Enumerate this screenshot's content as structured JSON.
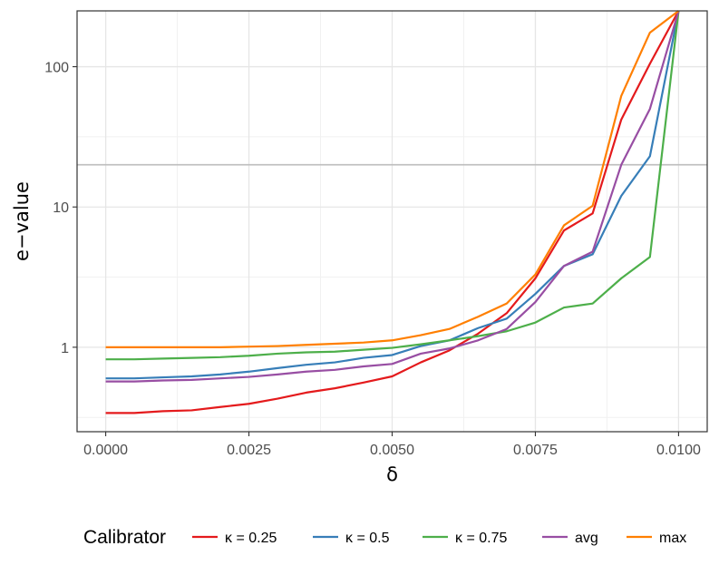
{
  "chart_data": {
    "type": "line",
    "xlabel": "δ",
    "ylabel": "e−value",
    "x_scale": "linear",
    "y_scale": "log",
    "xlim": [
      -0.0005,
      0.0105
    ],
    "ylim": [
      0.25,
      250
    ],
    "grid": true,
    "x_ticks": [
      {
        "value": 0.0,
        "label": "0.0000"
      },
      {
        "value": 0.0025,
        "label": "0.0025"
      },
      {
        "value": 0.005,
        "label": "0.0050"
      },
      {
        "value": 0.0075,
        "label": "0.0075"
      },
      {
        "value": 0.01,
        "label": "0.0100"
      }
    ],
    "y_ticks": [
      {
        "value": 1,
        "label": "1"
      },
      {
        "value": 10,
        "label": "10"
      },
      {
        "value": 100,
        "label": "100"
      }
    ],
    "reference_line": {
      "y": 20,
      "color": "#bdbdbd"
    },
    "x": [
      0.0,
      0.0005,
      0.001,
      0.0015,
      0.002,
      0.0025,
      0.003,
      0.0035,
      0.004,
      0.0045,
      0.005,
      0.0055,
      0.006,
      0.0065,
      0.007,
      0.0075,
      0.008,
      0.0085,
      0.009,
      0.0095,
      0.01
    ],
    "series": [
      {
        "name": "κ = 0.25",
        "color": "#e41a1c",
        "values": [
          0.34,
          0.34,
          0.35,
          0.355,
          0.375,
          0.395,
          0.43,
          0.475,
          0.51,
          0.56,
          0.62,
          0.78,
          0.95,
          1.25,
          1.75,
          3.1,
          6.8,
          9.0,
          42,
          105,
          250
        ]
      },
      {
        "name": "κ = 0.5",
        "color": "#377eb8",
        "values": [
          0.6,
          0.6,
          0.61,
          0.62,
          0.64,
          0.67,
          0.71,
          0.75,
          0.78,
          0.84,
          0.88,
          1.02,
          1.12,
          1.37,
          1.6,
          2.4,
          3.8,
          4.6,
          12,
          23,
          250
        ]
      },
      {
        "name": "κ = 0.75",
        "color": "#4daf4a",
        "values": [
          0.82,
          0.82,
          0.83,
          0.84,
          0.85,
          0.87,
          0.9,
          0.92,
          0.93,
          0.96,
          0.99,
          1.05,
          1.12,
          1.2,
          1.3,
          1.5,
          1.92,
          2.05,
          3.1,
          4.4,
          250
        ]
      },
      {
        "name": "avg",
        "color": "#984ea3",
        "values": [
          0.57,
          0.57,
          0.58,
          0.585,
          0.6,
          0.615,
          0.64,
          0.67,
          0.69,
          0.73,
          0.76,
          0.9,
          0.98,
          1.12,
          1.35,
          2.1,
          3.8,
          4.8,
          20,
          50,
          250
        ]
      },
      {
        "name": "max",
        "color": "#ff7f00",
        "values": [
          1.0,
          1.0,
          1.0,
          1.0,
          1.0,
          1.01,
          1.02,
          1.04,
          1.06,
          1.08,
          1.12,
          1.22,
          1.35,
          1.65,
          2.05,
          3.3,
          7.4,
          10.2,
          62,
          175,
          250
        ]
      }
    ],
    "legend": {
      "title": "Calibrator",
      "position": "bottom",
      "labels": [
        "κ = 0.25",
        "κ = 0.5",
        "κ = 0.75",
        "avg",
        "max"
      ]
    }
  }
}
